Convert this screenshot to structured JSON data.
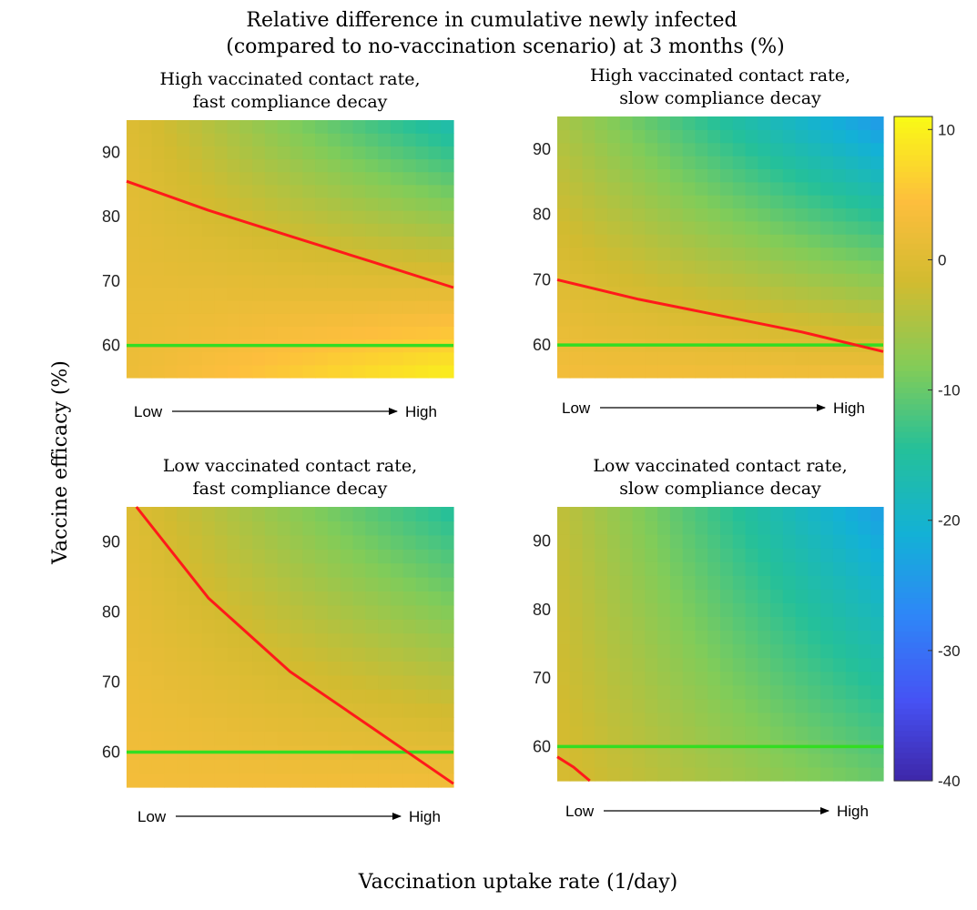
{
  "figure": {
    "title_line1": "Relative difference in cumulative newly infected",
    "title_line2": "(compared to no-vaccination scenario) at 3 months (%)",
    "ylabel": "Vaccine efficacy (%)",
    "xlabel": "Vaccination uptake rate (1/day)",
    "arrow_low": "Low",
    "arrow_high": "High"
  },
  "colorbar": {
    "min": -40,
    "max": 11,
    "ticks": [
      10,
      0,
      -10,
      -20,
      -30,
      -40
    ],
    "colormap": "parula"
  },
  "chart_data": [
    {
      "type": "heatmap",
      "title_line1": "High vaccinated contact rate,",
      "title_line2": "fast compliance decay",
      "ylim": [
        55,
        95
      ],
      "yticks": [
        60,
        70,
        80,
        90
      ],
      "x_range": [
        0,
        1
      ],
      "corner_values": {
        "bottom_left": 2,
        "bottom_right": 10,
        "top_left": 0,
        "top_right": -17
      },
      "red_line": [
        [
          0,
          85.5
        ],
        [
          0.25,
          81
        ],
        [
          0.5,
          77
        ],
        [
          0.75,
          73
        ],
        [
          1,
          69
        ]
      ],
      "green_line_y": 60,
      "line_colors": {
        "red": "#ff1a1a",
        "green": "#33dd22"
      }
    },
    {
      "type": "heatmap",
      "title_line1": "High vaccinated contact rate,",
      "title_line2": "slow compliance decay",
      "ylim": [
        55,
        95
      ],
      "yticks": [
        60,
        70,
        80,
        90
      ],
      "x_range": [
        0,
        1
      ],
      "corner_values": {
        "bottom_left": 3,
        "bottom_right": 3,
        "top_left": -5,
        "top_right": -25
      },
      "red_line": [
        [
          0,
          70
        ],
        [
          0.25,
          67
        ],
        [
          0.5,
          64.5
        ],
        [
          0.75,
          62
        ],
        [
          1,
          59
        ]
      ],
      "green_line_y": 60,
      "line_colors": {
        "red": "#ff1a1a",
        "green": "#33dd22"
      }
    },
    {
      "type": "heatmap",
      "title_line1": "Low vaccinated contact rate,",
      "title_line2": "fast compliance decay",
      "ylim": [
        55,
        95
      ],
      "yticks": [
        60,
        70,
        80,
        90
      ],
      "x_range": [
        0,
        1
      ],
      "corner_values": {
        "bottom_left": 3,
        "bottom_right": 3,
        "top_left": 0,
        "top_right": -15
      },
      "red_line": [
        [
          0.03,
          95
        ],
        [
          0.25,
          82
        ],
        [
          0.5,
          71.5
        ],
        [
          0.75,
          63.5
        ],
        [
          1,
          55.5
        ]
      ],
      "green_line_y": 60,
      "line_colors": {
        "red": "#ff1a1a",
        "green": "#33dd22"
      }
    },
    {
      "type": "heatmap",
      "title_line1": "Low vaccinated contact rate,",
      "title_line2": "slow compliance decay",
      "ylim": [
        55,
        95
      ],
      "yticks": [
        60,
        70,
        80,
        90
      ],
      "x_range": [
        0,
        1
      ],
      "corner_values": {
        "bottom_left": -1,
        "bottom_right": -10,
        "top_left": -3,
        "top_right": -24
      },
      "red_line": [
        [
          0,
          58.5
        ],
        [
          0.05,
          57
        ],
        [
          0.1,
          55
        ]
      ],
      "green_line_y": 60,
      "line_colors": {
        "red": "#ff1a1a",
        "green": "#33dd22"
      }
    }
  ]
}
